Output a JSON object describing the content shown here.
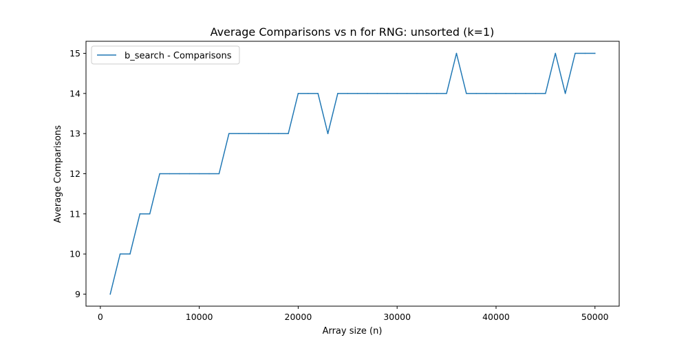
{
  "chart_data": {
    "type": "line",
    "title": "Average Comparisons vs n for RNG: unsorted (k=1)",
    "xlabel": "Array size (n)",
    "ylabel": "Average Comparisons",
    "xlim": [
      -1450,
      52450
    ],
    "ylim": [
      8.7,
      15.3
    ],
    "xticks": [
      0,
      10000,
      20000,
      30000,
      40000,
      50000
    ],
    "yticks": [
      9,
      10,
      11,
      12,
      13,
      14,
      15
    ],
    "grid": false,
    "legend_position": "upper left",
    "series": [
      {
        "name": "b_search - Comparisons",
        "color": "#1f77b4",
        "x": [
          1000,
          2000,
          3000,
          4000,
          5000,
          6000,
          7000,
          8000,
          9000,
          10000,
          11000,
          12000,
          13000,
          14000,
          15000,
          16000,
          17000,
          18000,
          19000,
          20000,
          21000,
          22000,
          23000,
          24000,
          25000,
          26000,
          27000,
          28000,
          29000,
          30000,
          31000,
          32000,
          33000,
          34000,
          35000,
          36000,
          37000,
          38000,
          39000,
          40000,
          41000,
          42000,
          43000,
          44000,
          45000,
          46000,
          47000,
          48000,
          49000,
          50000
        ],
        "y": [
          9,
          10,
          10,
          11,
          11,
          12,
          12,
          12,
          12,
          12,
          12,
          12,
          13,
          13,
          13,
          13,
          13,
          13,
          13,
          14,
          14,
          14,
          13,
          14,
          14,
          14,
          14,
          14,
          14,
          14,
          14,
          14,
          14,
          14,
          14,
          15,
          14,
          14,
          14,
          14,
          14,
          14,
          14,
          14,
          14,
          15,
          14,
          15,
          15,
          15
        ]
      }
    ]
  }
}
